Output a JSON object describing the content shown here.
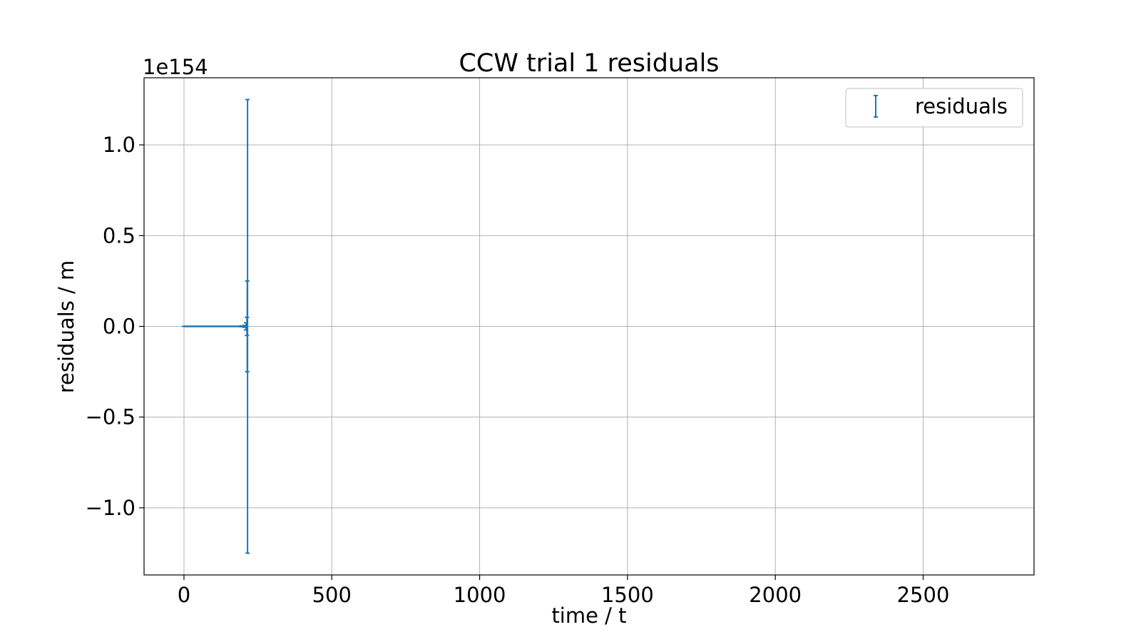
{
  "chart_data": {
    "type": "scatter",
    "title": "CCW trial 1 residuals",
    "xlabel": "time / t",
    "ylabel": "residuals / m",
    "y_offset_label": "1e154",
    "xlim": [
      -135,
      2875
    ],
    "ylim": [
      -1.37,
      1.37
    ],
    "xticks": [
      0,
      500,
      1000,
      1500,
      2000,
      2500
    ],
    "yticks": [
      -1.0,
      -0.5,
      0.0,
      0.5,
      1.0
    ],
    "ytick_labels": [
      "−1.0",
      "−0.5",
      "0.0",
      "0.5",
      "1.0"
    ],
    "grid": true,
    "legend": {
      "position": "top-right",
      "entries": [
        "residuals"
      ]
    },
    "series": [
      {
        "name": "residuals",
        "color": "#1f77b4",
        "marker": "errorbar",
        "points": [
          {
            "x": 0,
            "y": 0.0,
            "err": 0.0
          },
          {
            "x": 40,
            "y": 0.0,
            "err": 0.0
          },
          {
            "x": 80,
            "y": 0.0,
            "err": 0.0
          },
          {
            "x": 120,
            "y": 0.0,
            "err": 0.0
          },
          {
            "x": 160,
            "y": 0.0,
            "err": 0.0
          },
          {
            "x": 195,
            "y": 0.0,
            "err": 0.002
          },
          {
            "x": 205,
            "y": 0.0,
            "err": 0.005
          },
          {
            "x": 210,
            "y": 0.0,
            "err": 0.02
          },
          {
            "x": 213,
            "y": 0.0,
            "err": 0.05
          },
          {
            "x": 214,
            "y": 0.0,
            "err": 0.25
          },
          {
            "x": 215,
            "y": 0.0,
            "err": 1.25
          }
        ]
      }
    ]
  }
}
